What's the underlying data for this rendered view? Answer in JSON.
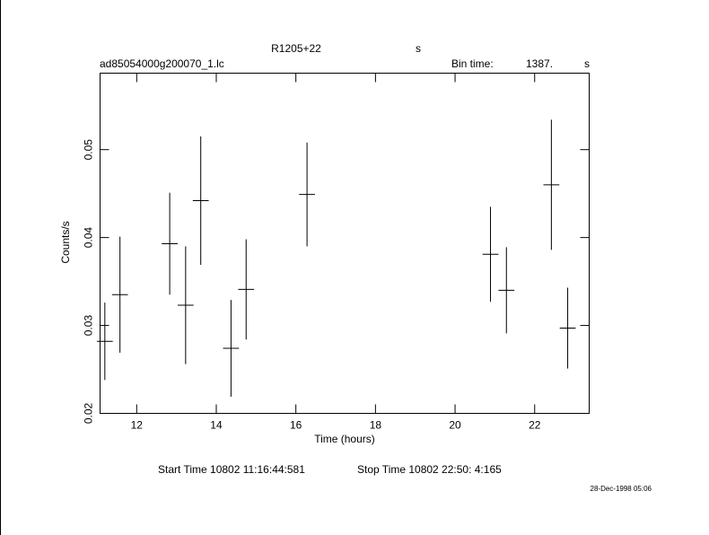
{
  "chart_data": {
    "type": "errorbar",
    "title": "R1205+22",
    "title_unit": "s",
    "file_name": "ad85054000g200070_1.lc",
    "bin_time_label": "Bin time:",
    "bin_time": "1387.",
    "bin_time_unit": "s",
    "xlabel": "Time (hours)",
    "ylabel": "Counts/s",
    "start_time": "Start Time 10802 11:16:44:581",
    "stop_time": "Stop Time 10802 22:50: 4:165",
    "timestamp": "28-Dec-1998 05:06",
    "color": "#000000",
    "x": [
      11.2,
      11.58,
      12.83,
      13.23,
      13.61,
      14.37,
      14.75,
      16.28,
      20.89,
      21.29,
      22.42,
      22.83
    ],
    "values": [
      0.0282,
      0.0335,
      0.0393,
      0.0323,
      0.0442,
      0.0274,
      0.0341,
      0.0449,
      0.0381,
      0.034,
      0.046,
      0.0297
    ],
    "errors": [
      0.0044,
      0.0066,
      0.0058,
      0.0067,
      0.0073,
      0.0055,
      0.0057,
      0.0059,
      0.0054,
      0.0049,
      0.0074,
      0.0046
    ],
    "xerr": 0.2,
    "xlim": [
      11.08,
      23.37
    ],
    "ylim": [
      0.02,
      0.0587
    ],
    "xticks": [
      12,
      14,
      16,
      18,
      20,
      22
    ],
    "yticks": [
      0.02,
      0.03,
      0.04,
      0.05
    ]
  }
}
